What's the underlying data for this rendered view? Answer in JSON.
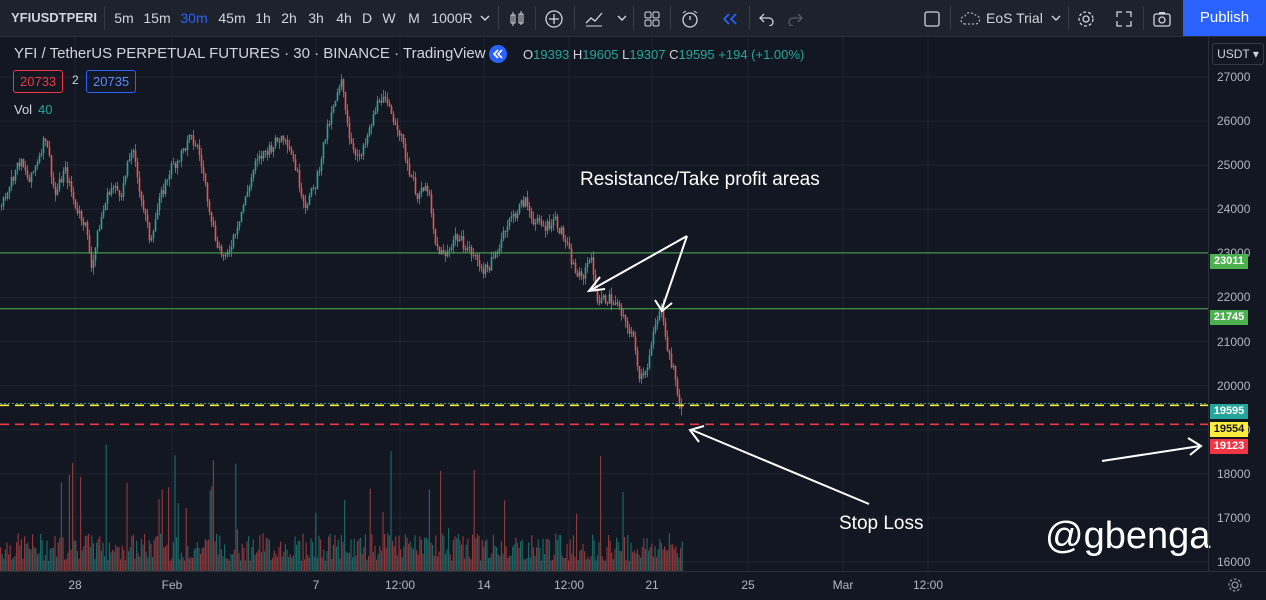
{
  "toolbar": {
    "symbol": "YFIUSDTPERI",
    "intervals": [
      "5m",
      "15m",
      "30m",
      "45m",
      "1h",
      "2h",
      "3h",
      "4h",
      "D",
      "W",
      "M",
      "1000R"
    ],
    "active_interval": "30m",
    "layout_name": "EoS Trial",
    "publish_label": "Publish"
  },
  "legend": {
    "title": "YFI / TetherUS PERPETUAL FUTURES · 30 · BINANCE · TradingView",
    "o_label": "O",
    "o": "19393",
    "h_label": "H",
    "h": "19605",
    "l_label": "L",
    "l": "19307",
    "c_label": "C",
    "c": "19595",
    "change": "+194 (+1.00%)",
    "bid": "20733",
    "spread": "2",
    "ask": "20735",
    "vol_label": "Vol",
    "vol_value": "40"
  },
  "currency": "USDT",
  "annotations": {
    "resistance": "Resistance/Take profit areas",
    "stop": "Stop Loss",
    "watermark": "@gbenga"
  },
  "price_labels": [
    {
      "value": "23011",
      "bg": "#4caf50",
      "fg": "#ffffff"
    },
    {
      "value": "21745",
      "bg": "#4caf50",
      "fg": "#ffffff"
    },
    {
      "value": "19595",
      "bg": "#26a69a",
      "fg": "#ffffff"
    },
    {
      "value": "19554",
      "bg": "#ffeb3b",
      "fg": "#131722"
    },
    {
      "value": "19123",
      "bg": "#f23645",
      "fg": "#ffffff"
    }
  ],
  "colors": {
    "up": "#26a69a",
    "down": "#ef5350",
    "accent": "#2962ff",
    "line_green": "#4caf50",
    "line_yellow": "#ffeb3b",
    "line_red": "#f23645"
  },
  "chart_data": {
    "type": "candlestick",
    "price_ticks": [
      27000,
      26000,
      25000,
      24000,
      23000,
      22000,
      21000,
      20000,
      19000,
      18000,
      17000,
      16000
    ],
    "time_ticks": [
      "28",
      "Feb",
      "7",
      "12:00",
      "14",
      "12:00",
      "21",
      "25",
      "Mar",
      "12:00"
    ],
    "ylim": [
      15800,
      27400
    ],
    "horizontal_lines": [
      {
        "price": 23011,
        "style": "solid",
        "color": "#4caf50"
      },
      {
        "price": 21745,
        "style": "solid",
        "color": "#4caf50"
      },
      {
        "price": 19595,
        "style": "dotted",
        "color": "#26a69a"
      },
      {
        "price": 19554,
        "style": "dashed",
        "color": "#ffeb3b"
      },
      {
        "price": 19123,
        "style": "dashed",
        "color": "#f23645"
      }
    ],
    "price_path": [
      [
        0,
        24050
      ],
      [
        10,
        24600
      ],
      [
        20,
        25100
      ],
      [
        30,
        24600
      ],
      [
        40,
        25300
      ],
      [
        46,
        25700
      ],
      [
        55,
        24300
      ],
      [
        65,
        24900
      ],
      [
        75,
        24100
      ],
      [
        85,
        23700
      ],
      [
        92,
        22700
      ],
      [
        100,
        23700
      ],
      [
        110,
        24500
      ],
      [
        122,
        24400
      ],
      [
        132,
        25400
      ],
      [
        142,
        24200
      ],
      [
        150,
        23300
      ],
      [
        160,
        24200
      ],
      [
        170,
        24900
      ],
      [
        180,
        25200
      ],
      [
        190,
        25600
      ],
      [
        198,
        25400
      ],
      [
        205,
        24600
      ],
      [
        215,
        23400
      ],
      [
        225,
        22800
      ],
      [
        235,
        23500
      ],
      [
        245,
        24200
      ],
      [
        255,
        25000
      ],
      [
        265,
        25300
      ],
      [
        275,
        25500
      ],
      [
        285,
        25700
      ],
      [
        293,
        25200
      ],
      [
        305,
        24100
      ],
      [
        315,
        24500
      ],
      [
        325,
        25600
      ],
      [
        335,
        26400
      ],
      [
        342,
        26900
      ],
      [
        350,
        25600
      ],
      [
        360,
        25100
      ],
      [
        370,
        25800
      ],
      [
        380,
        26600
      ],
      [
        388,
        26300
      ],
      [
        398,
        25900
      ],
      [
        408,
        25000
      ],
      [
        418,
        24300
      ],
      [
        428,
        24500
      ],
      [
        435,
        23200
      ],
      [
        445,
        22900
      ],
      [
        455,
        23400
      ],
      [
        465,
        23200
      ],
      [
        475,
        22900
      ],
      [
        485,
        22600
      ],
      [
        495,
        22900
      ],
      [
        505,
        23600
      ],
      [
        515,
        23900
      ],
      [
        525,
        24200
      ],
      [
        535,
        23700
      ],
      [
        545,
        23600
      ],
      [
        555,
        23800
      ],
      [
        565,
        23300
      ],
      [
        575,
        22600
      ],
      [
        582,
        22400
      ],
      [
        590,
        23000
      ],
      [
        598,
        21900
      ],
      [
        608,
        22000
      ],
      [
        618,
        21800
      ],
      [
        625,
        21400
      ],
      [
        632,
        21200
      ],
      [
        640,
        20200
      ],
      [
        648,
        20500
      ],
      [
        655,
        21300
      ],
      [
        662,
        21800
      ],
      [
        668,
        20800
      ],
      [
        675,
        20200
      ],
      [
        681,
        19400
      ]
    ]
  }
}
